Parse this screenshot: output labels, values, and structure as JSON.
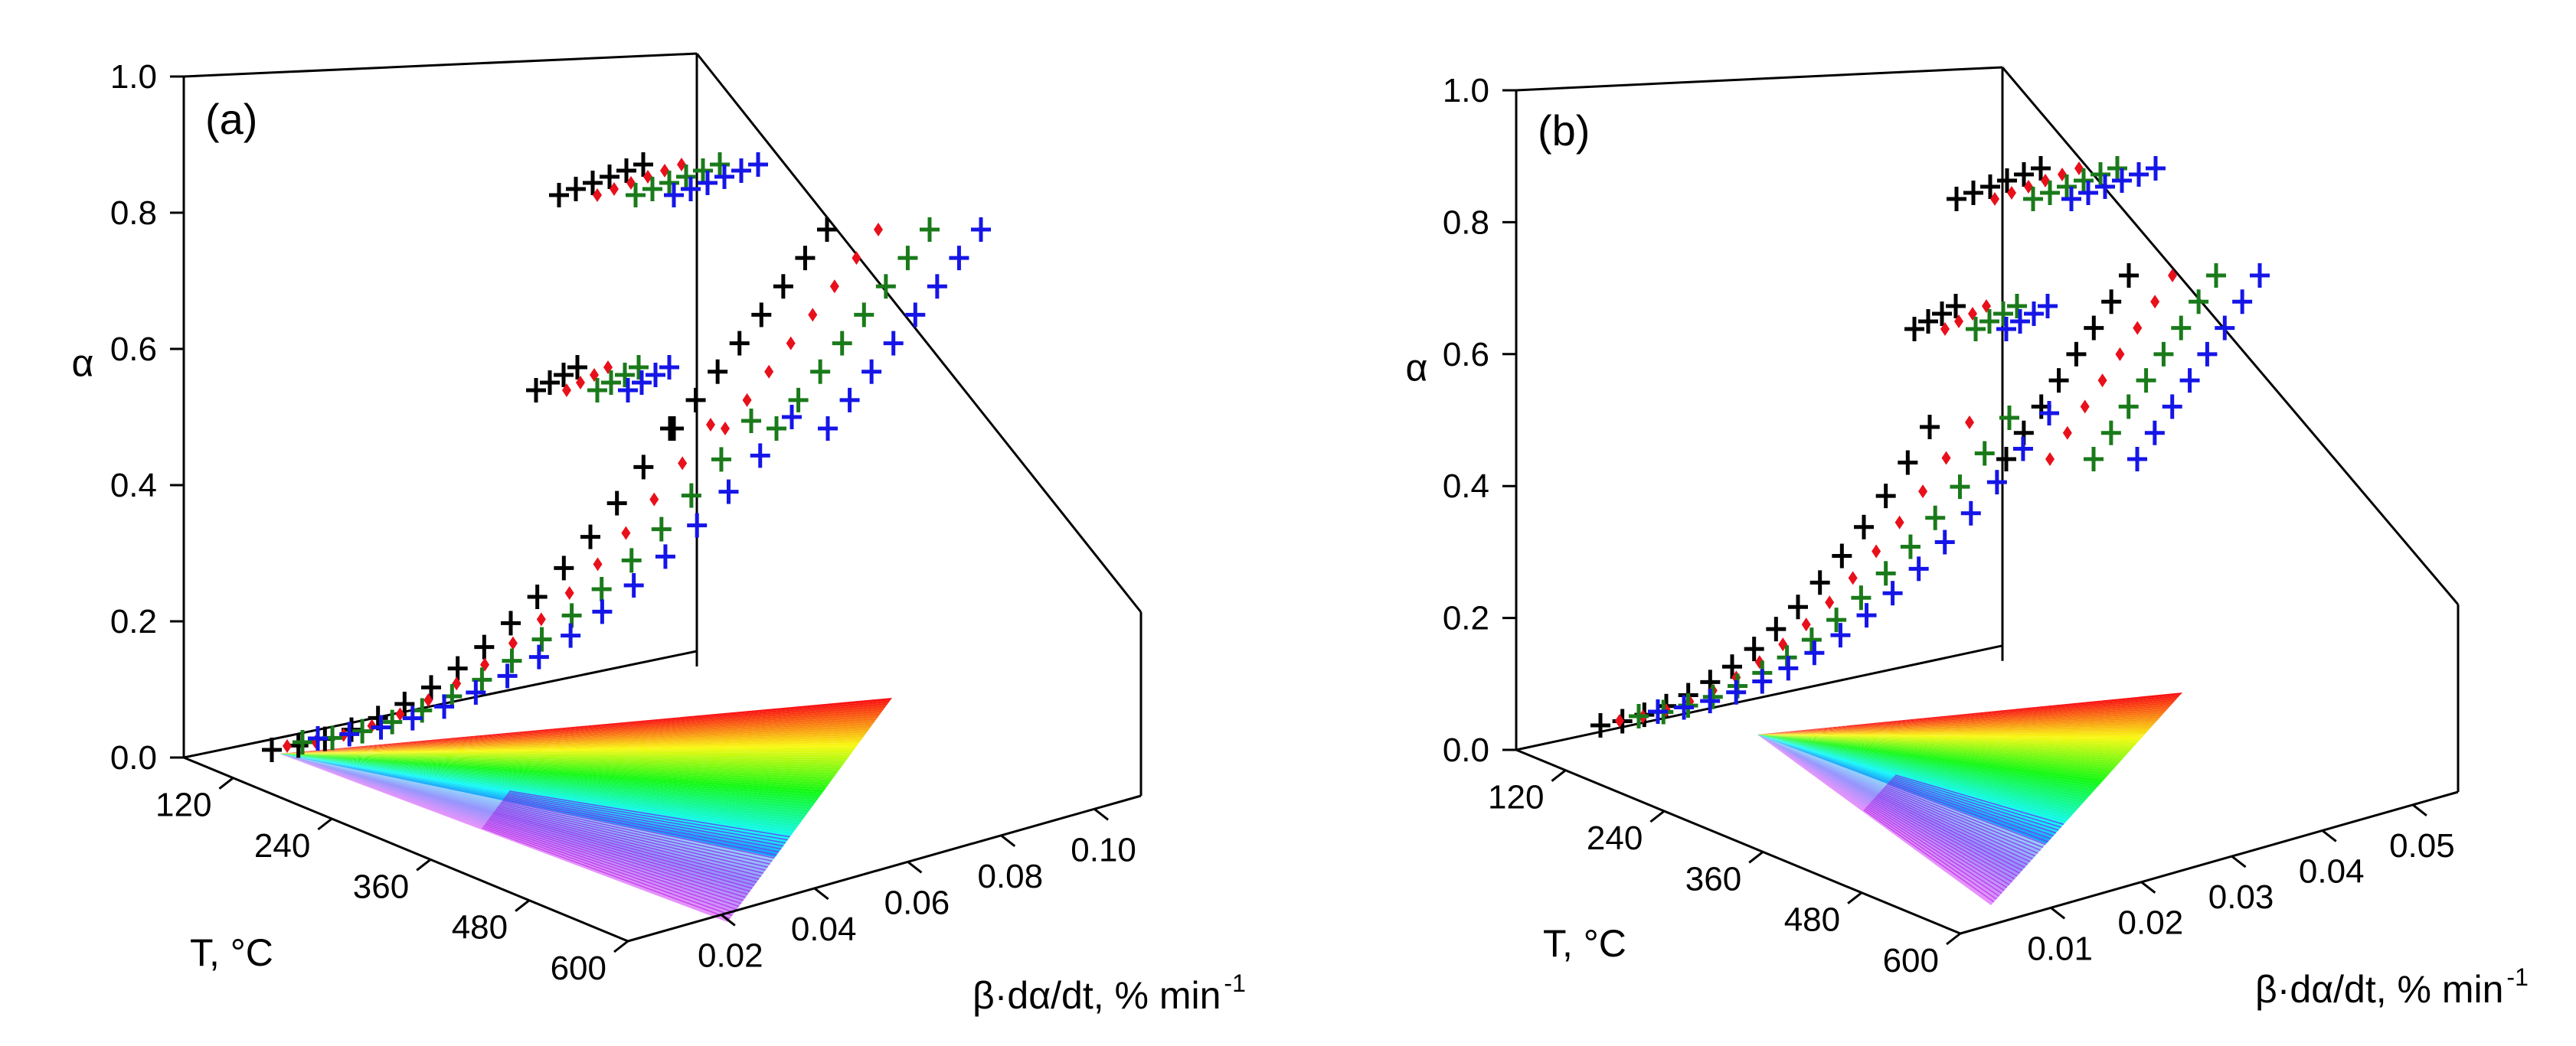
{
  "chart_data": [
    {
      "type": "scatter",
      "panel_label": "(a)",
      "projection": "3d",
      "z_axis": {
        "label": "α",
        "range": [
          0.0,
          1.0
        ],
        "ticks": [
          "0.0",
          "0.2",
          "0.4",
          "0.6",
          "0.8",
          "1.0"
        ]
      },
      "x_axis": {
        "label": "T, °C",
        "range": [
          60,
          600
        ],
        "ticks": [
          "120",
          "240",
          "360",
          "480",
          "600"
        ]
      },
      "y_axis": {
        "label": "β·dα/dt, % min",
        "label_sup": "-1",
        "range": [
          0.0,
          0.11
        ],
        "ticks": [
          "0.02",
          "0.04",
          "0.06",
          "0.08",
          "0.10"
        ]
      },
      "floor_surface": "rainbow contour of reaction-rate projection",
      "series": [
        {
          "name": "series-black",
          "color": "#000000",
          "marker": "cross"
        },
        {
          "name": "series-red",
          "color": "#e8101a",
          "marker": "diamond"
        },
        {
          "name": "series-green",
          "color": "#1a7a1a",
          "marker": "cross"
        },
        {
          "name": "series-blue",
          "color": "#1515e8",
          "marker": "cross"
        }
      ]
    },
    {
      "type": "scatter",
      "panel_label": "(b)",
      "projection": "3d",
      "z_axis": {
        "label": "α",
        "range": [
          0.0,
          1.0
        ],
        "ticks": [
          "0.0",
          "0.2",
          "0.4",
          "0.6",
          "0.8",
          "1.0"
        ]
      },
      "x_axis": {
        "label": "T, °C",
        "range": [
          60,
          600
        ],
        "ticks": [
          "120",
          "240",
          "360",
          "480",
          "600"
        ]
      },
      "y_axis": {
        "label": "β·dα/dt, % min",
        "label_sup": "-1",
        "range": [
          0.0,
          0.055
        ],
        "ticks": [
          "0.01",
          "0.02",
          "0.03",
          "0.04",
          "0.05"
        ]
      },
      "floor_surface": "rainbow contour of reaction-rate projection",
      "series": [
        {
          "name": "series-black",
          "color": "#000000",
          "marker": "cross"
        },
        {
          "name": "series-red",
          "color": "#e8101a",
          "marker": "diamond"
        },
        {
          "name": "series-green",
          "color": "#1a7a1a",
          "marker": "cross"
        },
        {
          "name": "series-blue",
          "color": "#1515e8",
          "marker": "cross"
        }
      ]
    }
  ]
}
